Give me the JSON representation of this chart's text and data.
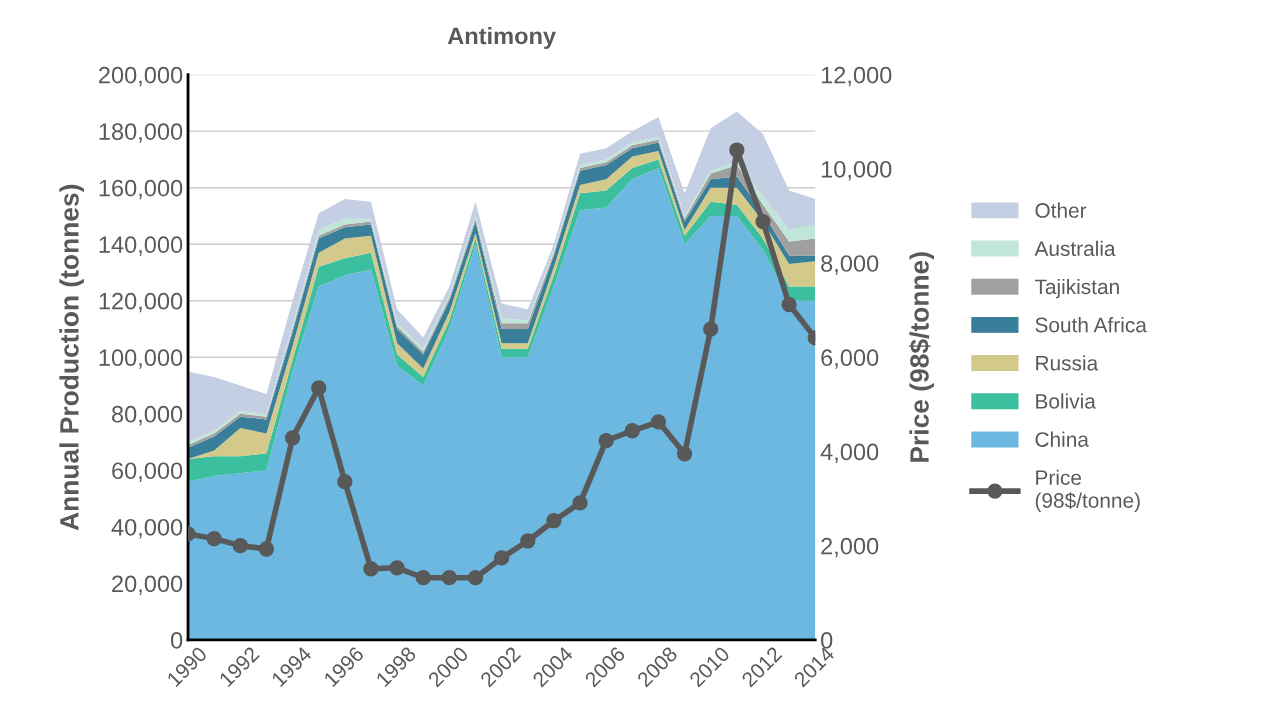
{
  "chart_data": {
    "type": "area",
    "stacked": true,
    "title": "Antimony",
    "ylabel": "Annual Production (tonnes)",
    "y2label": "Price (98$/tonne)",
    "x": [
      1990,
      1991,
      1992,
      1993,
      1994,
      1995,
      1996,
      1997,
      1998,
      1999,
      2000,
      2001,
      2002,
      2003,
      2004,
      2005,
      2006,
      2007,
      2008,
      2009,
      2010,
      2011,
      2012,
      2013,
      2014
    ],
    "series": [
      {
        "name": "China",
        "color": "#6cb8e0",
        "values": [
          56000,
          58000,
          59000,
          60000,
          95000,
          125000,
          129000,
          131000,
          97000,
          90000,
          110000,
          140000,
          100000,
          100000,
          125000,
          152000,
          153000,
          163000,
          167000,
          140000,
          150000,
          150000,
          138000,
          120000,
          120000
        ]
      },
      {
        "name": "Bolivia",
        "color": "#3cbf9f",
        "values": [
          8000,
          7000,
          6000,
          6000,
          4000,
          7000,
          6000,
          6000,
          4000,
          3000,
          3000,
          2000,
          3000,
          3000,
          4000,
          6000,
          6000,
          4000,
          3000,
          3000,
          5000,
          4000,
          4000,
          5000,
          5000
        ]
      },
      {
        "name": "Russia",
        "color": "#d2c98a",
        "values": [
          0,
          2000,
          10000,
          7000,
          5000,
          5000,
          7000,
          6000,
          4000,
          3000,
          3000,
          2000,
          2000,
          2000,
          3000,
          3000,
          4000,
          4000,
          3000,
          2000,
          5000,
          6000,
          6000,
          8000,
          9000
        ]
      },
      {
        "name": "South Africa",
        "color": "#3a7f99",
        "values": [
          4000,
          5000,
          4000,
          5000,
          5000,
          5000,
          4000,
          4000,
          5000,
          5000,
          4000,
          4000,
          5000,
          5000,
          4000,
          5000,
          5000,
          3000,
          3000,
          3000,
          3000,
          4000,
          3000,
          3000,
          2000
        ]
      },
      {
        "name": "Tajikistan",
        "color": "#a0a0a0",
        "values": [
          1000,
          1000,
          1000,
          1000,
          1000,
          1000,
          1000,
          1000,
          1000,
          1000,
          1000,
          1000,
          2000,
          2000,
          1000,
          1000,
          1000,
          1000,
          1000,
          1000,
          2000,
          4000,
          3000,
          5000,
          6000
        ]
      },
      {
        "name": "Australia",
        "color": "#c0e6da",
        "values": [
          1000,
          1000,
          1000,
          1000,
          1000,
          2000,
          2000,
          1000,
          1000,
          1000,
          1000,
          1000,
          2000,
          1000,
          1000,
          1000,
          1000,
          1000,
          1000,
          1000,
          1000,
          1000,
          3000,
          4000,
          5000
        ]
      },
      {
        "name": "Other",
        "color": "#c5cfe3",
        "values": [
          25000,
          19000,
          9000,
          7000,
          9000,
          6000,
          7000,
          6000,
          5000,
          4000,
          3000,
          5000,
          5000,
          4000,
          2000,
          4000,
          4000,
          4000,
          7000,
          8000,
          15000,
          18000,
          22000,
          14000,
          9000
        ]
      },
      {
        "name": "Price\n(98$/tonne)",
        "type": "line",
        "axis": "y2",
        "marker": "circle",
        "color": "#595959",
        "values": [
          2250,
          2150,
          2000,
          1930,
          4290,
          5350,
          3360,
          1510,
          1530,
          1320,
          1320,
          1320,
          1740,
          2100,
          2530,
          2910,
          4230,
          4440,
          4630,
          3950,
          6600,
          10400,
          8880,
          7120,
          6410
        ]
      }
    ],
    "xlim": [
      1990,
      2014
    ],
    "xticks": [
      1990,
      1992,
      1994,
      1996,
      1998,
      2000,
      2002,
      2004,
      2006,
      2008,
      2010,
      2012,
      2014
    ],
    "ylim": [
      0,
      200000
    ],
    "yticks": [
      {
        "value": 0,
        "label": "0"
      },
      {
        "value": 20000,
        "label": "20,000"
      },
      {
        "value": 40000,
        "label": "40,000"
      },
      {
        "value": 60000,
        "label": "60,000"
      },
      {
        "value": 80000,
        "label": "80,000"
      },
      {
        "value": 100000,
        "label": "100,000"
      },
      {
        "value": 120000,
        "label": "120,000"
      },
      {
        "value": 140000,
        "label": "140,000"
      },
      {
        "value": 160000,
        "label": "160,000"
      },
      {
        "value": 180000,
        "label": "180,000"
      },
      {
        "value": 200000,
        "label": "200,000"
      }
    ],
    "y2lim": [
      0,
      12000
    ],
    "y2ticks": [
      {
        "value": 0,
        "label": "0"
      },
      {
        "value": 2000,
        "label": "2,000"
      },
      {
        "value": 4000,
        "label": "4,000"
      },
      {
        "value": 6000,
        "label": "6,000"
      },
      {
        "value": 8000,
        "label": "8,000"
      },
      {
        "value": 10000,
        "label": "10,000"
      },
      {
        "value": 12000,
        "label": "12,000"
      }
    ],
    "grid": "y",
    "legend": "right"
  }
}
